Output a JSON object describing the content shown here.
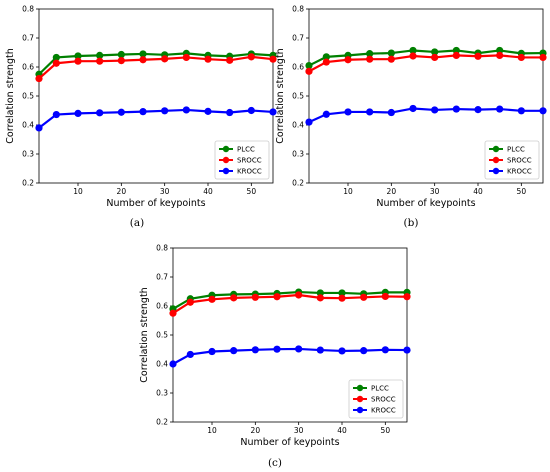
{
  "chart_data": [
    {
      "type": "line",
      "caption": "(a)",
      "xlabel": "Number of keypoints",
      "ylabel": "Correlation strength",
      "xlim": [
        1,
        55
      ],
      "ylim": [
        0.2,
        0.8
      ],
      "xticks": [
        10,
        20,
        30,
        40,
        50
      ],
      "yticks": [
        0.2,
        0.3,
        0.4,
        0.5,
        0.6,
        0.7,
        0.8
      ],
      "legend_position": "lower-right",
      "grid": false,
      "x": [
        1,
        5,
        10,
        15,
        20,
        25,
        30,
        35,
        40,
        45,
        50,
        55
      ],
      "series": [
        {
          "name": "PLCC",
          "color": "#008000",
          "values": [
            0.575,
            0.633,
            0.638,
            0.64,
            0.643,
            0.645,
            0.642,
            0.647,
            0.64,
            0.637,
            0.645,
            0.64
          ]
        },
        {
          "name": "SROCC",
          "color": "#ff0000",
          "values": [
            0.56,
            0.613,
            0.62,
            0.62,
            0.622,
            0.625,
            0.628,
            0.633,
            0.627,
            0.623,
            0.635,
            0.627
          ]
        },
        {
          "name": "KROCC",
          "color": "#0000ff",
          "values": [
            0.39,
            0.436,
            0.44,
            0.442,
            0.444,
            0.446,
            0.449,
            0.452,
            0.447,
            0.443,
            0.45,
            0.445
          ]
        }
      ]
    },
    {
      "type": "line",
      "caption": "(b)",
      "xlabel": "Number of keypoints",
      "ylabel": "Correlation strength",
      "xlim": [
        1,
        55
      ],
      "ylim": [
        0.2,
        0.8
      ],
      "xticks": [
        10,
        20,
        30,
        40,
        50
      ],
      "yticks": [
        0.2,
        0.3,
        0.4,
        0.5,
        0.6,
        0.7,
        0.8
      ],
      "legend_position": "lower-right",
      "grid": false,
      "x": [
        1,
        5,
        10,
        15,
        20,
        25,
        30,
        35,
        40,
        45,
        50,
        55
      ],
      "series": [
        {
          "name": "PLCC",
          "color": "#008000",
          "values": [
            0.605,
            0.635,
            0.64,
            0.646,
            0.648,
            0.657,
            0.652,
            0.657,
            0.648,
            0.657,
            0.647,
            0.648
          ]
        },
        {
          "name": "SROCC",
          "color": "#ff0000",
          "values": [
            0.585,
            0.617,
            0.625,
            0.627,
            0.627,
            0.638,
            0.633,
            0.64,
            0.637,
            0.64,
            0.633,
            0.633
          ]
        },
        {
          "name": "KROCC",
          "color": "#0000ff",
          "values": [
            0.41,
            0.437,
            0.445,
            0.445,
            0.443,
            0.457,
            0.452,
            0.455,
            0.453,
            0.455,
            0.449,
            0.449
          ]
        }
      ]
    },
    {
      "type": "line",
      "caption": "(c)",
      "xlabel": "Number of keypoints",
      "ylabel": "Correlation strength",
      "xlim": [
        1,
        55
      ],
      "ylim": [
        0.2,
        0.8
      ],
      "xticks": [
        10,
        20,
        30,
        40,
        50
      ],
      "yticks": [
        0.2,
        0.3,
        0.4,
        0.5,
        0.6,
        0.7,
        0.8
      ],
      "legend_position": "lower-right",
      "grid": false,
      "x": [
        1,
        5,
        10,
        15,
        20,
        25,
        30,
        35,
        40,
        45,
        50,
        55
      ],
      "series": [
        {
          "name": "PLCC",
          "color": "#008000",
          "values": [
            0.59,
            0.625,
            0.637,
            0.64,
            0.641,
            0.643,
            0.648,
            0.645,
            0.645,
            0.642,
            0.647,
            0.647
          ]
        },
        {
          "name": "SROCC",
          "color": "#ff0000",
          "values": [
            0.575,
            0.613,
            0.623,
            0.628,
            0.63,
            0.632,
            0.638,
            0.628,
            0.627,
            0.63,
            0.633,
            0.632
          ]
        },
        {
          "name": "KROCC",
          "color": "#0000ff",
          "values": [
            0.4,
            0.433,
            0.443,
            0.446,
            0.449,
            0.451,
            0.452,
            0.448,
            0.445,
            0.446,
            0.449,
            0.448
          ]
        }
      ]
    }
  ]
}
